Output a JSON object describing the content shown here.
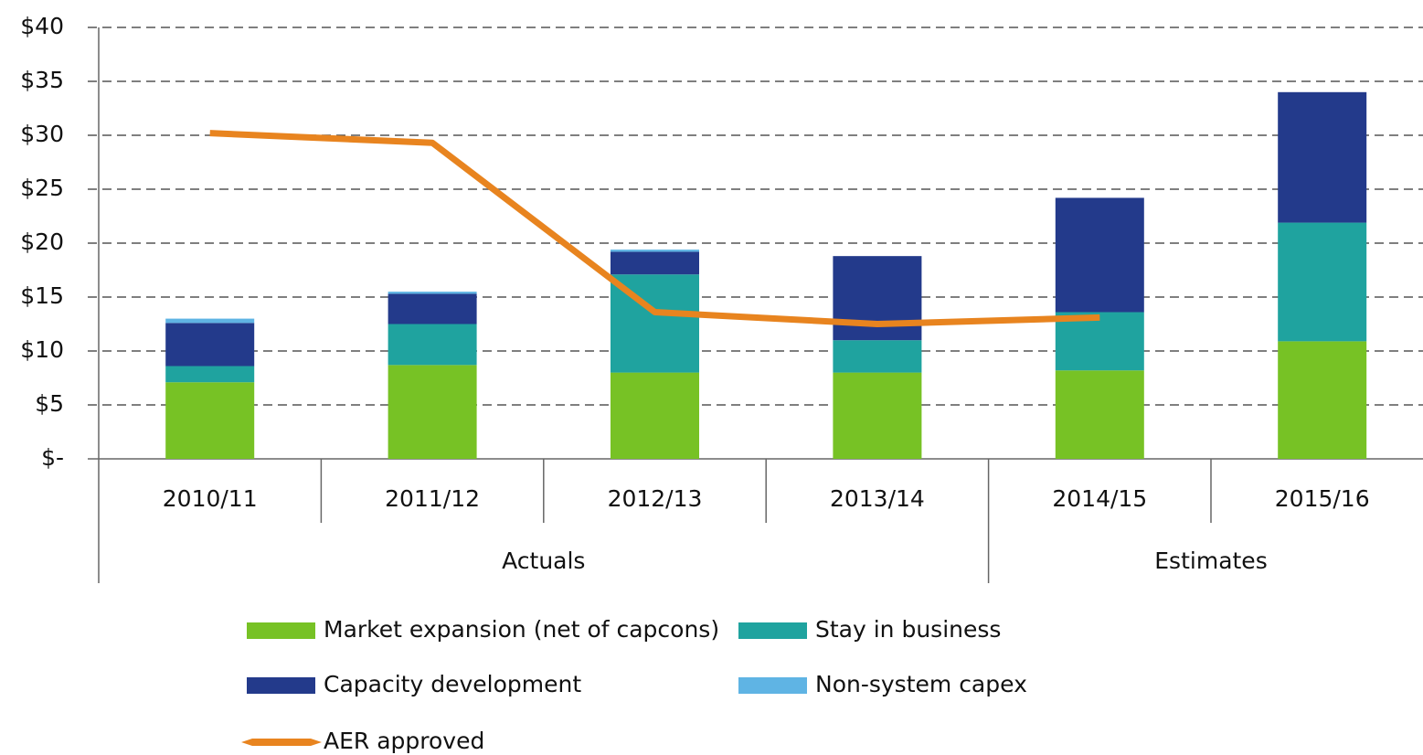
{
  "chart_data": {
    "type": "bar",
    "stacked": true,
    "categories": [
      "2010/11",
      "2011/12",
      "2012/13",
      "2013/14",
      "2014/15",
      "2015/16"
    ],
    "groups": [
      {
        "name": "Actuals",
        "count": 4
      },
      {
        "name": "Estimates",
        "count": 2
      }
    ],
    "series": [
      {
        "name": "Market expansion (net of capcons)",
        "color": "#77c225",
        "values": [
          7.1,
          8.7,
          8.0,
          8.0,
          8.2,
          10.9
        ]
      },
      {
        "name": "Stay in business",
        "color": "#1fa39f",
        "values": [
          1.5,
          3.8,
          9.1,
          3.0,
          5.4,
          11.0
        ]
      },
      {
        "name": "Capacity development",
        "color": "#233a8b",
        "values": [
          4.0,
          2.8,
          2.1,
          7.8,
          10.6,
          12.1
        ]
      },
      {
        "name": "Non-system capex",
        "color": "#5fb4e4",
        "values": [
          0.4,
          0.2,
          0.2,
          0,
          0,
          0
        ]
      },
      {
        "name": "AER approved",
        "type": "line",
        "color": "#e8841f",
        "values": [
          30.2,
          29.3,
          13.6,
          12.5,
          13.1,
          null
        ]
      }
    ],
    "ylim": [
      0,
      40
    ],
    "yticks": [
      {
        "value": 0,
        "label": "$-"
      },
      {
        "value": 5,
        "label": "$5"
      },
      {
        "value": 10,
        "label": "$10"
      },
      {
        "value": 15,
        "label": "$15"
      },
      {
        "value": 20,
        "label": "$20"
      },
      {
        "value": 25,
        "label": "$25"
      },
      {
        "value": 30,
        "label": "$30"
      },
      {
        "value": 35,
        "label": "$35"
      },
      {
        "value": 40,
        "label": "$40"
      }
    ],
    "grid": true,
    "legend": "bottom"
  }
}
